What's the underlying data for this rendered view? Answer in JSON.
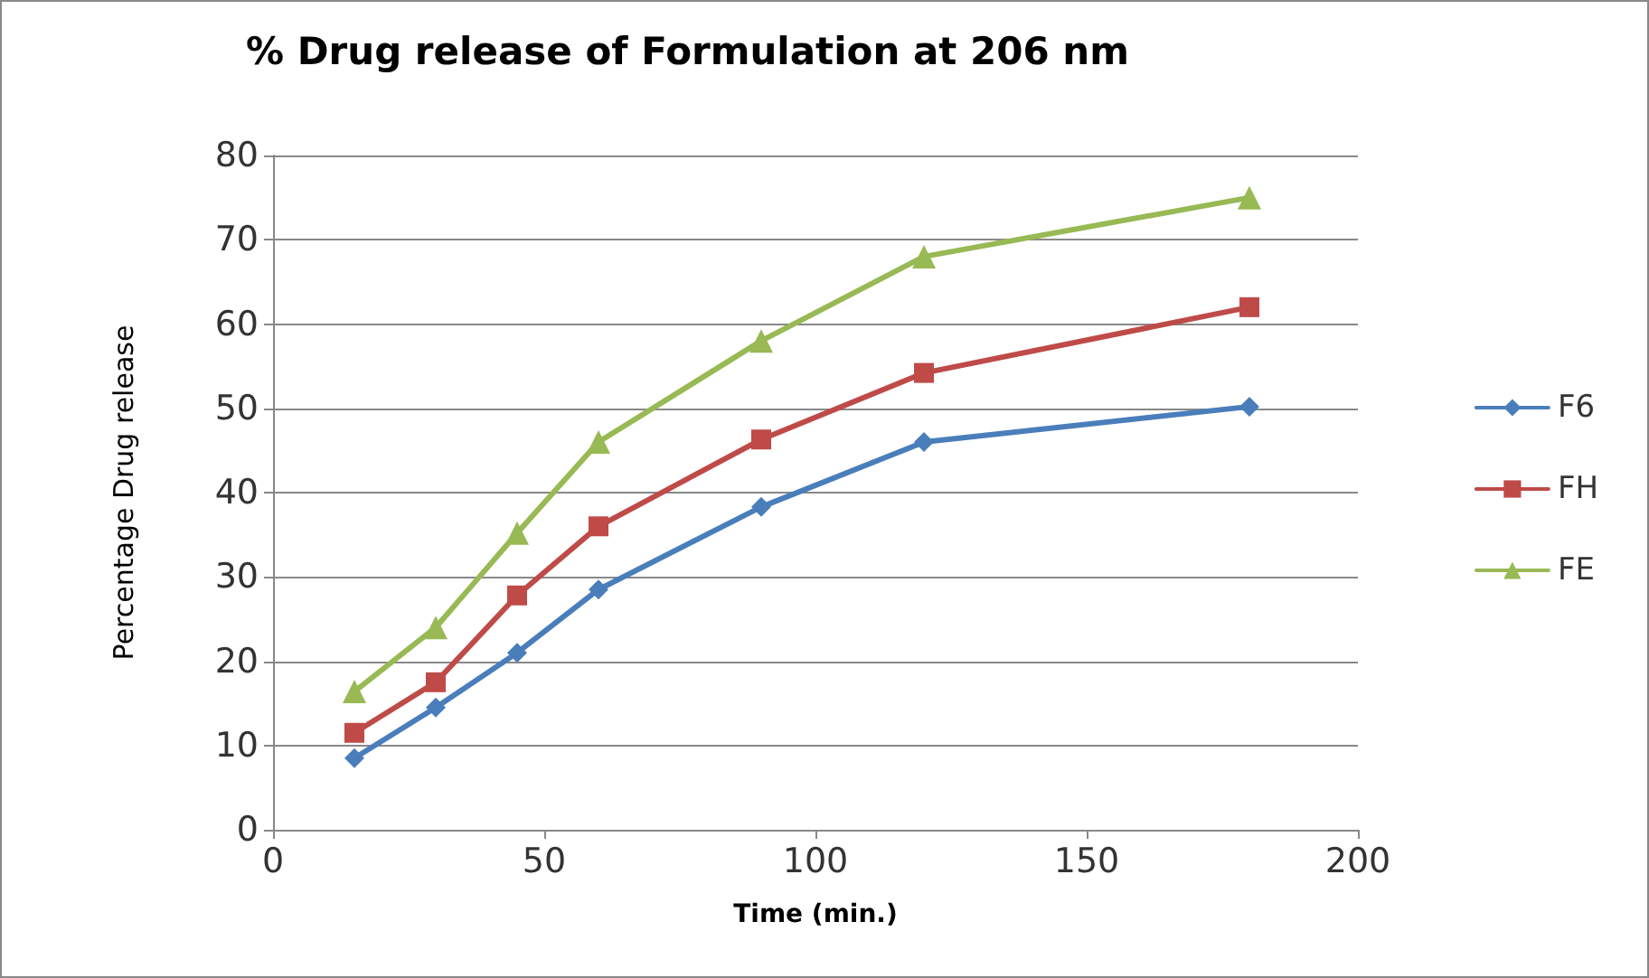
{
  "chart_data": {
    "type": "line",
    "title": "% Drug release of Formulation at 206 nm",
    "xlabel": "Time (min.)",
    "ylabel": "Percentage Drug release",
    "x": [
      15,
      30,
      45,
      60,
      90,
      120,
      180
    ],
    "series": [
      {
        "name": "F6",
        "color": "#4a7ebb",
        "marker": "diamond",
        "values": [
          8.5,
          14.5,
          21,
          28.5,
          38.3,
          46,
          50.2
        ]
      },
      {
        "name": "FH",
        "color": "#be4b48",
        "marker": "square",
        "values": [
          11.5,
          17.5,
          27.8,
          36,
          46.3,
          54.2,
          62
        ]
      },
      {
        "name": "FE",
        "color": "#98b954",
        "marker": "triangle",
        "values": [
          16.4,
          24,
          35.2,
          46,
          58,
          68,
          75
        ]
      }
    ],
    "xlim": [
      0,
      200
    ],
    "xticks": [
      0,
      50,
      100,
      150,
      200
    ],
    "ylim": [
      0,
      80
    ],
    "yticks": [
      0,
      10,
      20,
      30,
      40,
      50,
      60,
      70,
      80
    ],
    "grid": "y",
    "legend": "right",
    "line_style": "solid"
  }
}
